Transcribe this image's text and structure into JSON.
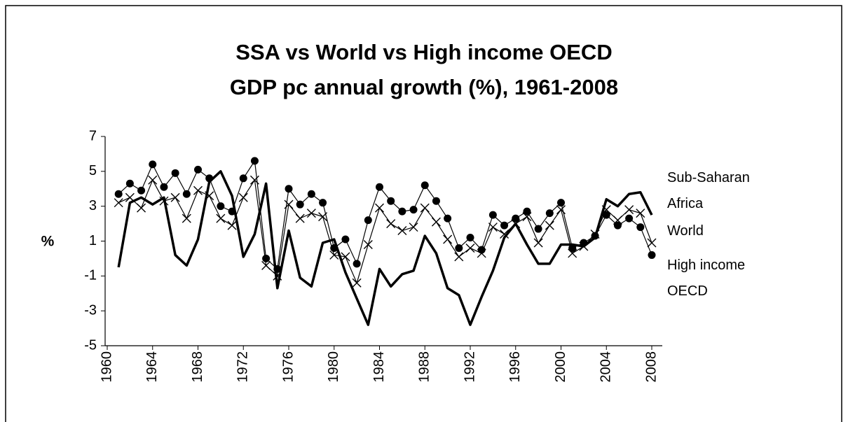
{
  "chart_data": {
    "type": "line",
    "title": [
      "SSA vs World vs High income OECD",
      "GDP pc annual growth (%), 1961-2008"
    ],
    "ylabel": "%",
    "x": [
      1961,
      1962,
      1963,
      1964,
      1965,
      1966,
      1967,
      1968,
      1969,
      1970,
      1971,
      1972,
      1973,
      1974,
      1975,
      1976,
      1977,
      1978,
      1979,
      1980,
      1981,
      1982,
      1983,
      1984,
      1985,
      1986,
      1987,
      1988,
      1989,
      1990,
      1991,
      1992,
      1993,
      1994,
      1995,
      1996,
      1997,
      1998,
      1999,
      2000,
      2001,
      2002,
      2003,
      2004,
      2005,
      2006,
      2007,
      2008
    ],
    "xlim": [
      1960,
      2008
    ],
    "xticks": [
      1960,
      1964,
      1968,
      1972,
      1976,
      1980,
      1984,
      1988,
      1992,
      1996,
      2000,
      2004,
      2008
    ],
    "ylim": [
      -5,
      7
    ],
    "yticks": [
      7,
      5,
      3,
      1,
      -1,
      -3,
      -5
    ],
    "grid": false,
    "series": [
      {
        "name": "Sub-Saharan Africa",
        "color": "#000000",
        "marker": "none",
        "line_width": 3.5,
        "values": [
          -0.5,
          3.2,
          3.5,
          3.1,
          3.5,
          0.2,
          -0.4,
          1.1,
          4.4,
          5.0,
          3.6,
          0.1,
          1.4,
          4.3,
          -1.7,
          1.6,
          -1.1,
          -1.6,
          0.9,
          1.1,
          -0.8,
          -2.3,
          -3.8,
          -0.6,
          -1.6,
          -0.9,
          -0.7,
          1.3,
          0.3,
          -1.7,
          -2.1,
          -3.8,
          -2.2,
          -0.7,
          1.2,
          2.0,
          0.8,
          -0.3,
          -0.3,
          0.8,
          0.8,
          0.7,
          1.2,
          3.4,
          3.0,
          3.7,
          3.8,
          2.5
        ]
      },
      {
        "name": "World",
        "color": "#000000",
        "marker": "x",
        "line_width": 1.2,
        "values": [
          3.2,
          3.5,
          2.9,
          4.5,
          3.3,
          3.5,
          2.3,
          3.9,
          3.6,
          2.3,
          1.9,
          3.5,
          4.5,
          -0.4,
          -1.0,
          3.1,
          2.3,
          2.6,
          2.4,
          0.2,
          0.1,
          -1.4,
          0.8,
          2.9,
          2.0,
          1.6,
          1.8,
          2.9,
          2.1,
          1.1,
          0.1,
          0.6,
          0.3,
          1.8,
          1.4,
          2.0,
          2.4,
          0.9,
          1.9,
          2.8,
          0.3,
          0.7,
          1.4,
          2.8,
          2.2,
          2.8,
          2.6,
          0.9
        ]
      },
      {
        "name": "High income OECD",
        "color": "#000000",
        "marker": "circle",
        "line_width": 1.2,
        "values": [
          3.7,
          4.3,
          3.9,
          5.4,
          4.1,
          4.9,
          3.7,
          5.1,
          4.6,
          3.0,
          2.7,
          4.6,
          5.6,
          0.0,
          -0.6,
          4.0,
          3.1,
          3.7,
          3.2,
          0.6,
          1.1,
          -0.3,
          2.2,
          4.1,
          3.3,
          2.7,
          2.8,
          4.2,
          3.3,
          2.3,
          0.6,
          1.2,
          0.5,
          2.5,
          1.9,
          2.3,
          2.7,
          1.7,
          2.6,
          3.2,
          0.6,
          0.9,
          1.3,
          2.5,
          1.9,
          2.3,
          1.8,
          0.2
        ]
      }
    ]
  }
}
